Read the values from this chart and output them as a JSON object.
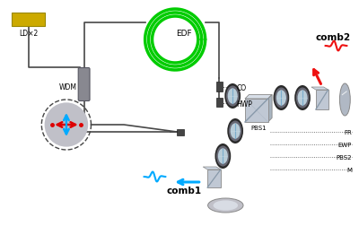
{
  "bg_color": "#ffffff",
  "ld_label": "LD×2",
  "wdm_label": "WDM",
  "edf_label": "EDF",
  "co_label": "CO",
  "hwp_label": "HWP",
  "pbs1_label": "PBS1",
  "fr_label": "FR",
  "ewp_label": "EWP",
  "pbs2_label": "PBS2",
  "m_label": "M",
  "comb1_label": "comb1",
  "comb2_label": "comb2",
  "fiber_color": "#484848",
  "edf_fiber_color": "#00cc00",
  "dotted_color": "#555555",
  "comb1_color": "#00aaff",
  "comb2_color": "#ee1111",
  "lens_outer": "#2a2a2a",
  "lens_inner": "#b8ccd8",
  "lens_rim": "#555555",
  "pbs_face": "#c0c8d4",
  "pbs_diag": "#8899aa",
  "mirror_color": "#c8ccd8",
  "ld_color": "#ccaa00",
  "wdm_color": "#888890",
  "flat_mirror_color": "#b0b8c4",
  "disk_color": "#c0c0c8"
}
